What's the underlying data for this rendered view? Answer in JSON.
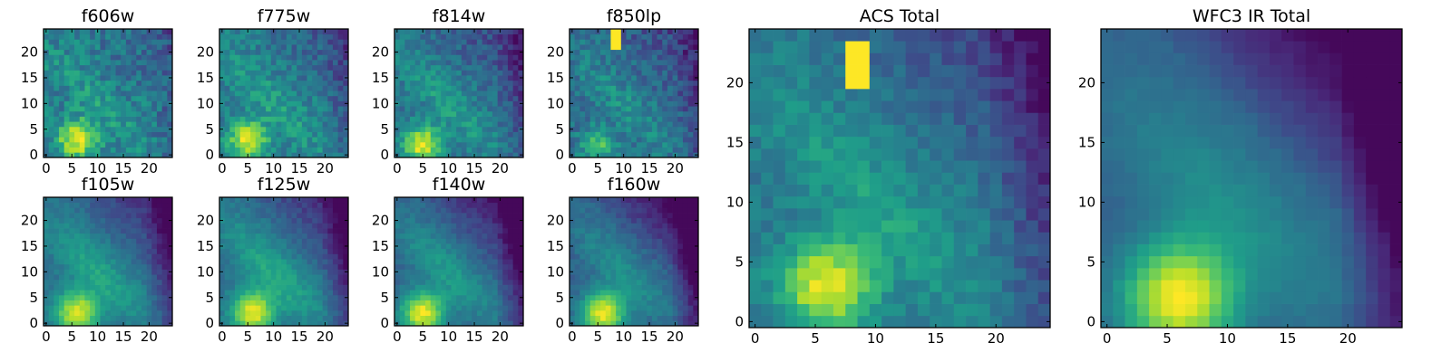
{
  "figure": {
    "colormap": "viridis",
    "grid_size": 25,
    "axis_range": [
      0,
      24
    ],
    "color_range": [
      0,
      1
    ]
  },
  "chart_data": [
    {
      "type": "heatmap",
      "title": "f606w",
      "xticks": [
        "0",
        "5",
        "10",
        "15",
        "20"
      ],
      "yticks": [
        "0",
        "5",
        "10",
        "15",
        "20"
      ],
      "model": {
        "noise": 0.26,
        "seed": 11,
        "base": 0.42,
        "peak": 0.98,
        "peak_x": 6,
        "peak_y": 3,
        "peak_sigma": 2.6,
        "diag_amp": 0.12,
        "diag_sigma": 4,
        "diag_width": 2.5,
        "corner_dark": 0.12,
        "clump": null
      }
    },
    {
      "type": "heatmap",
      "title": "f775w",
      "xticks": [
        "0",
        "5",
        "10",
        "15",
        "20"
      ],
      "yticks": [
        "0",
        "5",
        "10",
        "15",
        "20"
      ],
      "model": {
        "noise": 0.22,
        "seed": 23,
        "base": 0.42,
        "peak": 0.96,
        "peak_x": 5,
        "peak_y": 3,
        "peak_sigma": 2.6,
        "diag_amp": 0.15,
        "diag_sigma": 4,
        "diag_width": 2.5,
        "corner_dark": 0.18,
        "clump": null
      }
    },
    {
      "type": "heatmap",
      "title": "f814w",
      "xticks": [
        "0",
        "5",
        "10",
        "15",
        "20"
      ],
      "yticks": [
        "0",
        "5",
        "10",
        "15",
        "20"
      ],
      "model": {
        "noise": 0.2,
        "seed": 37,
        "base": 0.38,
        "peak": 0.97,
        "peak_x": 5,
        "peak_y": 2,
        "peak_sigma": 2.6,
        "diag_amp": 0.18,
        "diag_sigma": 4,
        "diag_width": 2.5,
        "corner_dark": 0.22,
        "clump": null
      }
    },
    {
      "type": "heatmap",
      "title": "f850lp",
      "xticks": [
        "0",
        "5",
        "10",
        "15",
        "20"
      ],
      "yticks": [
        "0",
        "5",
        "10",
        "15",
        "20"
      ],
      "model": {
        "noise": 0.22,
        "seed": 41,
        "base": 0.36,
        "peak": 0.7,
        "peak_x": 5,
        "peak_y": 2,
        "peak_sigma": 2.4,
        "diag_amp": 0.14,
        "diag_sigma": 4,
        "diag_width": 2.5,
        "corner_dark": 0.2,
        "clump": {
          "x": [
            8,
            9
          ],
          "y": [
            21,
            24
          ],
          "value": 1.0
        }
      }
    },
    {
      "type": "heatmap",
      "title": "f105w",
      "xticks": [
        "0",
        "5",
        "10",
        "15",
        "20"
      ],
      "yticks": [
        "0",
        "5",
        "10",
        "15",
        "20"
      ],
      "model": {
        "noise": 0.1,
        "seed": 53,
        "base": 0.36,
        "peak": 0.95,
        "peak_x": 6,
        "peak_y": 2,
        "peak_sigma": 3,
        "diag_amp": 0.22,
        "diag_sigma": 4,
        "diag_width": 3,
        "corner_dark": 0.3,
        "clump": null
      }
    },
    {
      "type": "heatmap",
      "title": "f125w",
      "xticks": [
        "0",
        "5",
        "10",
        "15",
        "20"
      ],
      "yticks": [
        "0",
        "5",
        "10",
        "15",
        "20"
      ],
      "model": {
        "noise": 0.1,
        "seed": 67,
        "base": 0.36,
        "peak": 0.97,
        "peak_x": 6,
        "peak_y": 2,
        "peak_sigma": 3,
        "diag_amp": 0.24,
        "diag_sigma": 4,
        "diag_width": 3,
        "corner_dark": 0.32,
        "clump": null
      }
    },
    {
      "type": "heatmap",
      "title": "f140w",
      "xticks": [
        "0",
        "5",
        "10",
        "15",
        "20"
      ],
      "yticks": [
        "0",
        "5",
        "10",
        "15",
        "20"
      ],
      "model": {
        "noise": 0.1,
        "seed": 71,
        "base": 0.32,
        "peak": 0.97,
        "peak_x": 5,
        "peak_y": 2,
        "peak_sigma": 3,
        "diag_amp": 0.22,
        "diag_sigma": 4,
        "diag_width": 3,
        "corner_dark": 0.36,
        "clump": null
      }
    },
    {
      "type": "heatmap",
      "title": "f160w",
      "xticks": [
        "0",
        "5",
        "10",
        "15",
        "20"
      ],
      "yticks": [
        "0",
        "5",
        "10",
        "15",
        "20"
      ],
      "model": {
        "noise": 0.1,
        "seed": 83,
        "base": 0.3,
        "peak": 0.98,
        "peak_x": 6,
        "peak_y": 2,
        "peak_sigma": 3,
        "diag_amp": 0.2,
        "diag_sigma": 4,
        "diag_width": 3,
        "corner_dark": 0.4,
        "clump": null
      }
    },
    {
      "type": "heatmap",
      "title": "ACS Total",
      "xticks": [
        "0",
        "5",
        "10",
        "15",
        "20"
      ],
      "yticks": [
        "0",
        "5",
        "10",
        "15",
        "20"
      ],
      "model": {
        "noise": 0.14,
        "seed": 97,
        "base": 0.4,
        "peak": 0.98,
        "peak_x": 6,
        "peak_y": 3,
        "peak_sigma": 2.7,
        "diag_amp": 0.16,
        "diag_sigma": 4,
        "diag_width": 2.5,
        "corner_dark": 0.28,
        "clump": {
          "x": [
            8,
            9
          ],
          "y": [
            20,
            23
          ],
          "value": 1.0
        }
      }
    },
    {
      "type": "heatmap",
      "title": "WFC3 IR Total",
      "xticks": [
        "0",
        "5",
        "10",
        "15",
        "20"
      ],
      "yticks": [
        "0",
        "5",
        "10",
        "15",
        "20"
      ],
      "model": {
        "noise": 0.04,
        "seed": 101,
        "base": 0.3,
        "peak": 1.0,
        "peak_x": 6,
        "peak_y": 2,
        "peak_sigma": 3.3,
        "diag_amp": 0.18,
        "diag_sigma": 4,
        "diag_width": 3.5,
        "corner_dark": 0.42,
        "clump": null
      }
    }
  ]
}
